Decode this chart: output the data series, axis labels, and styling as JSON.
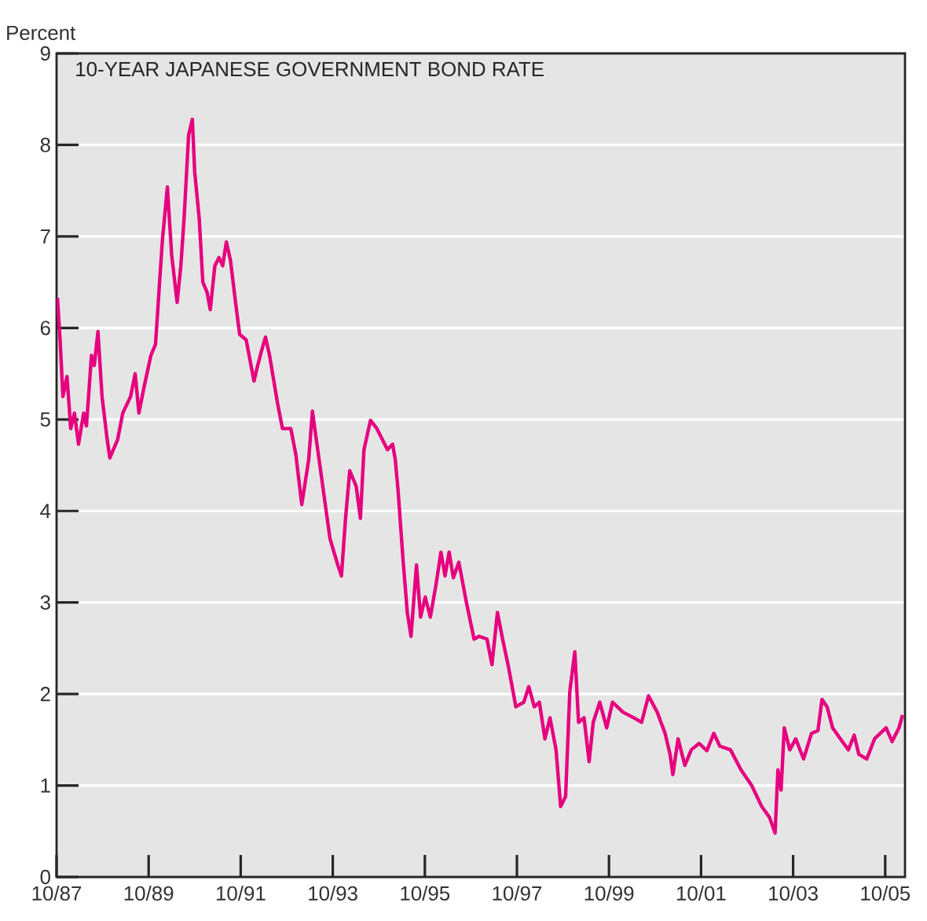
{
  "chart_data": {
    "type": "line",
    "title": "10-YEAR JAPANESE GOVERNMENT BOND RATE",
    "ylabel": "Percent",
    "xlim": [
      "1987-10-01",
      "2006-03-06"
    ],
    "ylim": [
      0,
      9
    ],
    "yticks": [
      0,
      1,
      2,
      3,
      4,
      5,
      6,
      7,
      8,
      9
    ],
    "xticks": [
      {
        "value": "1987-10",
        "label": "10/87"
      },
      {
        "value": "1989-10",
        "label": "10/89"
      },
      {
        "value": "1991-10",
        "label": "10/91"
      },
      {
        "value": "1993-10",
        "label": "10/93"
      },
      {
        "value": "1995-10",
        "label": "10/95"
      },
      {
        "value": "1997-10",
        "label": "10/97"
      },
      {
        "value": "1999-10",
        "label": "10/99"
      },
      {
        "value": "2001-10",
        "label": "10/01"
      },
      {
        "value": "2003-10",
        "label": "10/03"
      },
      {
        "value": "2005-10",
        "label": "10/05"
      }
    ],
    "grid": "y",
    "series": [
      {
        "color": "#e6007e",
        "x": [
          "1987-10-08",
          "1987-10-29",
          "1987-11-21",
          "1987-12-23",
          "1988-01-22",
          "1988-02-21",
          "1988-03-23",
          "1988-05-03",
          "1988-05-25",
          "1988-07-04",
          "1988-07-26",
          "1988-08-25",
          "1988-09-27",
          "1988-11-07",
          "1988-11-28",
          "1989-01-29",
          "1989-03-09",
          "1989-05-10",
          "1989-06-16",
          "1989-07-15",
          "1989-08-25",
          "1989-10-19",
          "1989-11-25",
          "1989-12-27",
          "1990-01-19",
          "1990-02-28",
          "1990-04-01",
          "1990-05-14",
          "1990-06-13",
          "1990-07-08",
          "1990-08-14",
          "1990-09-13",
          "1990-10-01",
          "1990-11-07",
          "1990-12-05",
          "1991-01-08",
          "1991-02-03",
          "1991-03-09",
          "1991-04-11",
          "1991-05-10",
          "1991-06-09",
          "1991-07-11",
          "1991-08-21",
          "1991-09-23",
          "1991-11-14",
          "1992-01-15",
          "1992-02-14",
          "1992-03-16",
          "1992-04-15",
          "1992-05-17",
          "1992-07-19",
          "1992-08-28",
          "1992-11-03",
          "1992-12-13",
          "1993-01-29",
          "1993-03-23",
          "1993-04-22",
          "1993-07-08",
          "1993-09-09",
          "1993-11-10",
          "1993-12-09",
          "1994-01-11",
          "1994-02-14",
          "1994-04-04",
          "1994-05-07",
          "1994-06-05",
          "1994-07-26",
          "1994-09-16",
          "1994-12-09",
          "1995-01-19",
          "1995-02-10",
          "1995-03-02",
          "1995-04-11",
          "1995-05-14",
          "1995-06-13",
          "1995-07-26",
          "1995-08-28",
          "1995-10-04",
          "1995-11-14",
          "1995-12-27",
          "1996-02-07",
          "1996-03-09",
          "1996-04-11",
          "1996-05-14",
          "1996-06-27",
          "1996-08-25",
          "1996-10-26",
          "1996-12-05",
          "1997-02-07",
          "1997-03-16",
          "1997-04-29",
          "1997-06-09",
          "1997-07-22",
          "1997-09-23",
          "1997-11-25",
          "1998-01-04",
          "1998-02-17",
          "1998-03-27",
          "1998-05-10",
          "1998-06-20",
          "1998-08-07",
          "1998-09-13",
          "1998-10-22",
          "1998-11-25",
          "1999-01-04",
          "1999-02-03",
          "1999-03-16",
          "1999-04-26",
          "1999-05-28",
          "1999-07-19",
          "1999-09-13",
          "1999-10-29",
          "2000-01-22",
          "2000-04-15",
          "2000-06-16",
          "2000-08-10",
          "2000-10-19",
          "2000-12-20",
          "2001-01-29",
          "2001-02-21",
          "2001-04-01",
          "2001-05-25",
          "2001-07-15",
          "2001-09-16",
          "2001-11-17",
          "2002-01-11",
          "2002-02-28",
          "2002-05-21",
          "2002-08-14",
          "2002-11-07",
          "2003-01-26",
          "2003-03-27",
          "2003-05-10",
          "2003-06-02",
          "2003-06-27",
          "2003-07-22",
          "2003-09-05",
          "2003-10-22",
          "2003-12-23",
          "2004-02-25",
          "2004-04-15",
          "2004-05-17",
          "2004-06-27",
          "2004-08-10",
          "2004-10-11",
          "2004-12-13",
          "2005-01-29",
          "2005-03-05",
          "2005-05-07",
          "2005-07-08",
          "2005-10-08",
          "2005-11-25",
          "2006-01-19",
          "2006-02-17"
        ],
        "values": [
          6.33,
          5.87,
          5.25,
          5.47,
          4.9,
          5.07,
          4.73,
          5.07,
          4.93,
          5.7,
          5.59,
          5.96,
          5.25,
          4.78,
          4.58,
          4.78,
          5.07,
          5.25,
          5.5,
          5.07,
          5.35,
          5.7,
          5.82,
          6.5,
          6.96,
          7.54,
          6.8,
          6.28,
          6.68,
          7.19,
          8.11,
          8.28,
          7.71,
          7.19,
          6.5,
          6.39,
          6.2,
          6.68,
          6.77,
          6.68,
          6.94,
          6.74,
          6.28,
          5.93,
          5.87,
          5.42,
          5.59,
          5.76,
          5.9,
          5.7,
          5.18,
          4.9,
          4.9,
          4.61,
          4.07,
          4.56,
          5.09,
          4.32,
          3.7,
          3.41,
          3.29,
          3.92,
          4.44,
          4.27,
          3.92,
          4.67,
          4.99,
          4.9,
          4.67,
          4.73,
          4.56,
          4.22,
          3.46,
          2.89,
          2.63,
          3.41,
          2.84,
          3.06,
          2.84,
          3.18,
          3.55,
          3.29,
          3.55,
          3.27,
          3.44,
          3.01,
          2.6,
          2.63,
          2.6,
          2.32,
          2.89,
          2.6,
          2.32,
          1.86,
          1.91,
          2.08,
          1.86,
          1.91,
          1.51,
          1.74,
          1.39,
          0.77,
          0.88,
          2.03,
          2.46,
          1.69,
          1.74,
          1.26,
          1.69,
          1.91,
          1.63,
          1.91,
          1.8,
          1.74,
          1.69,
          1.98,
          1.8,
          1.57,
          1.34,
          1.12,
          1.51,
          1.22,
          1.39,
          1.46,
          1.38,
          1.57,
          1.43,
          1.39,
          1.17,
          1.0,
          0.77,
          0.65,
          0.48,
          1.17,
          0.95,
          1.63,
          1.39,
          1.51,
          1.29,
          1.57,
          1.6,
          1.94,
          1.86,
          1.63,
          1.51,
          1.39,
          1.55,
          1.34,
          1.29,
          1.51,
          1.63,
          1.48,
          1.63,
          1.77
        ]
      }
    ]
  }
}
